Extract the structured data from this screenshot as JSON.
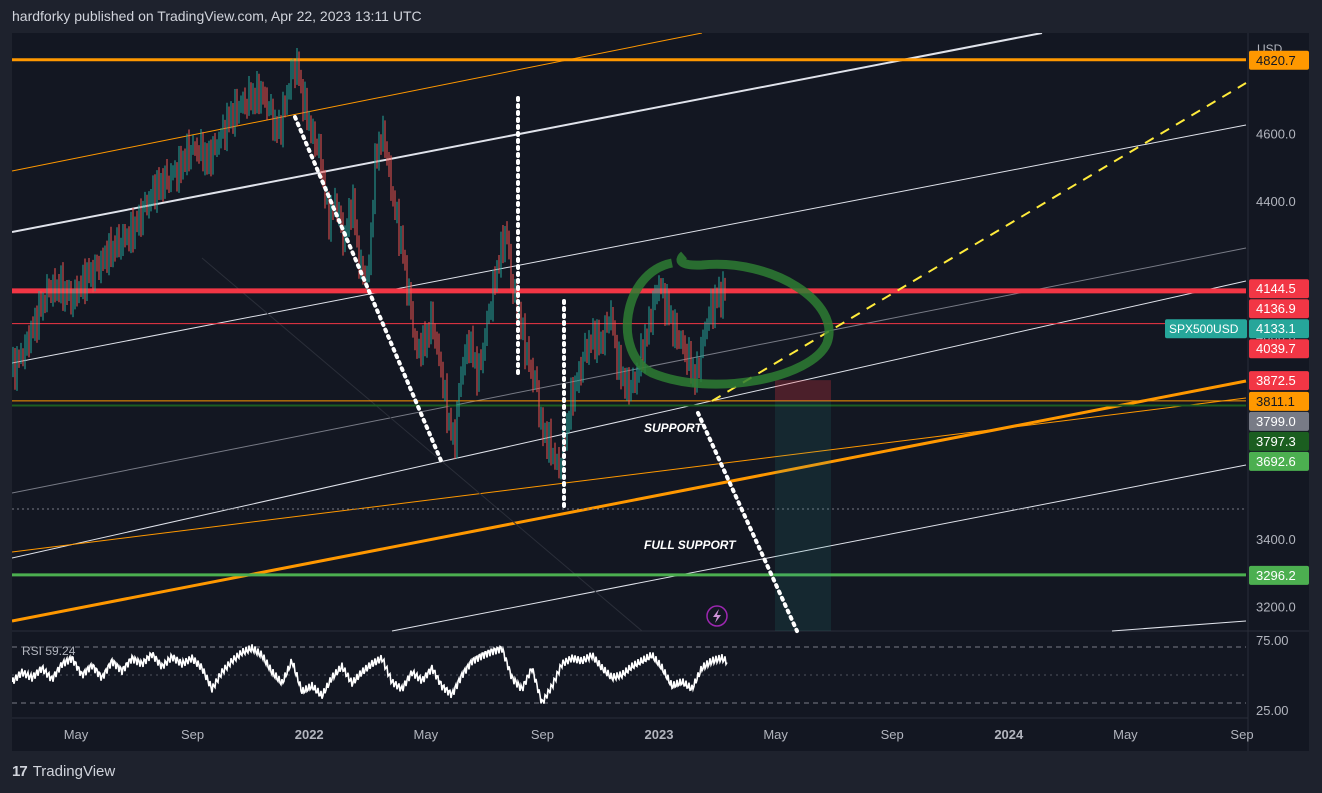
{
  "header": {
    "publisher": "hardforky published on TradingView.com, Apr 22, 2023 13:11 UTC"
  },
  "footer": {
    "logo_mark": "17",
    "brand": "TradingView"
  },
  "chart_data": {
    "type": "line",
    "symbol": "SPX500USD",
    "currency": "USD",
    "price_axis": {
      "ylim": [
        3130,
        4900
      ],
      "ticks": [
        3200.0,
        3400.0,
        4000.0,
        4400.0,
        4600.0
      ]
    },
    "time_axis": {
      "labels": [
        "May",
        "Sep",
        "2022",
        "May",
        "Sep",
        "2023",
        "May",
        "Sep",
        "2024",
        "May",
        "Sep"
      ]
    },
    "price_badges": [
      {
        "value": "4820.7",
        "color": "#ff9800",
        "text_color": "#131722"
      },
      {
        "value": "4144.5",
        "color": "#f23645",
        "text_color": "#ffffff"
      },
      {
        "value": "4136.9",
        "color": "#f23645",
        "text_color": "#ffffff"
      },
      {
        "value": "4133.1",
        "color": "#26a69a",
        "text_color": "#ffffff",
        "tag": "SPX500USD"
      },
      {
        "value": "4039.7",
        "color": "#f23645",
        "text_color": "#ffffff"
      },
      {
        "value": "3872.5",
        "color": "#f23645",
        "text_color": "#ffffff"
      },
      {
        "value": "3811.1",
        "color": "#ff9800",
        "text_color": "#131722"
      },
      {
        "value": "3799.0",
        "color": "#787b86",
        "text_color": "#ffffff"
      },
      {
        "value": "3797.3",
        "color": "#1b5e20",
        "text_color": "#ffffff"
      },
      {
        "value": "3692.6",
        "color": "#4caf50",
        "text_color": "#ffffff"
      },
      {
        "value": "3296.2",
        "color": "#4caf50",
        "text_color": "#ffffff"
      }
    ],
    "price_series": [
      [
        0,
        3900
      ],
      [
        12,
        3960
      ],
      [
        24,
        4050
      ],
      [
        36,
        4140
      ],
      [
        48,
        4150
      ],
      [
        60,
        4110
      ],
      [
        72,
        4170
      ],
      [
        84,
        4200
      ],
      [
        96,
        4250
      ],
      [
        108,
        4280
      ],
      [
        120,
        4310
      ],
      [
        132,
        4380
      ],
      [
        144,
        4440
      ],
      [
        156,
        4470
      ],
      [
        168,
        4500
      ],
      [
        176,
        4550
      ],
      [
        186,
        4560
      ],
      [
        196,
        4520
      ],
      [
        206,
        4580
      ],
      [
        218,
        4650
      ],
      [
        230,
        4690
      ],
      [
        240,
        4710
      ],
      [
        250,
        4720
      ],
      [
        258,
        4670
      ],
      [
        266,
        4600
      ],
      [
        274,
        4700
      ],
      [
        280,
        4790
      ],
      [
        285,
        4800
      ],
      [
        292,
        4690
      ],
      [
        300,
        4600
      ],
      [
        308,
        4540
      ],
      [
        316,
        4350
      ],
      [
        324,
        4400
      ],
      [
        332,
        4280
      ],
      [
        340,
        4410
      ],
      [
        348,
        4200
      ],
      [
        356,
        4170
      ],
      [
        364,
        4550
      ],
      [
        372,
        4600
      ],
      [
        380,
        4420
      ],
      [
        388,
        4300
      ],
      [
        396,
        4140
      ],
      [
        404,
        3960
      ],
      [
        412,
        3980
      ],
      [
        420,
        4050
      ],
      [
        428,
        3920
      ],
      [
        436,
        3760
      ],
      [
        442,
        3680
      ],
      [
        450,
        3920
      ],
      [
        458,
        3990
      ],
      [
        466,
        3880
      ],
      [
        474,
        4020
      ],
      [
        482,
        4160
      ],
      [
        490,
        4270
      ],
      [
        494,
        4320
      ],
      [
        500,
        4150
      ],
      [
        508,
        4050
      ],
      [
        516,
        3930
      ],
      [
        524,
        3860
      ],
      [
        530,
        3720
      ],
      [
        538,
        3680
      ],
      [
        546,
        3610
      ],
      [
        552,
        3680
      ],
      [
        558,
        3800
      ],
      [
        566,
        3880
      ],
      [
        574,
        3970
      ],
      [
        582,
        4000
      ],
      [
        590,
        3980
      ],
      [
        598,
        4080
      ],
      [
        606,
        3920
      ],
      [
        614,
        3850
      ],
      [
        622,
        3860
      ],
      [
        630,
        3950
      ],
      [
        638,
        4050
      ],
      [
        646,
        4160
      ],
      [
        654,
        4100
      ],
      [
        662,
        4020
      ],
      [
        670,
        3980
      ],
      [
        678,
        3920
      ],
      [
        684,
        3870
      ],
      [
        690,
        3980
      ],
      [
        698,
        4080
      ],
      [
        706,
        4120
      ],
      [
        714,
        4140
      ]
    ],
    "rsi": {
      "label": "RSI 59.24",
      "ylim": [
        20,
        80
      ],
      "upper_band": "75.00",
      "lower_band": "25.00",
      "values": [
        [
          0,
          45
        ],
        [
          10,
          52
        ],
        [
          20,
          48
        ],
        [
          30,
          55
        ],
        [
          40,
          47
        ],
        [
          50,
          58
        ],
        [
          60,
          62
        ],
        [
          70,
          50
        ],
        [
          80,
          57
        ],
        [
          90,
          48
        ],
        [
          100,
          60
        ],
        [
          110,
          53
        ],
        [
          120,
          62
        ],
        [
          130,
          58
        ],
        [
          140,
          65
        ],
        [
          150,
          56
        ],
        [
          160,
          63
        ],
        [
          170,
          58
        ],
        [
          180,
          62
        ],
        [
          190,
          55
        ],
        [
          200,
          40
        ],
        [
          210,
          52
        ],
        [
          220,
          60
        ],
        [
          230,
          66
        ],
        [
          240,
          69
        ],
        [
          250,
          64
        ],
        [
          260,
          52
        ],
        [
          270,
          44
        ],
        [
          280,
          60
        ],
        [
          290,
          38
        ],
        [
          300,
          42
        ],
        [
          310,
          35
        ],
        [
          320,
          48
        ],
        [
          330,
          56
        ],
        [
          340,
          44
        ],
        [
          350,
          52
        ],
        [
          360,
          58
        ],
        [
          370,
          62
        ],
        [
          380,
          45
        ],
        [
          390,
          40
        ],
        [
          400,
          52
        ],
        [
          410,
          46
        ],
        [
          420,
          55
        ],
        [
          430,
          42
        ],
        [
          440,
          36
        ],
        [
          450,
          50
        ],
        [
          460,
          60
        ],
        [
          470,
          64
        ],
        [
          480,
          67
        ],
        [
          490,
          69
        ],
        [
          500,
          48
        ],
        [
          510,
          40
        ],
        [
          520,
          55
        ],
        [
          530,
          30
        ],
        [
          540,
          42
        ],
        [
          550,
          58
        ],
        [
          560,
          62
        ],
        [
          570,
          60
        ],
        [
          580,
          64
        ],
        [
          590,
          55
        ],
        [
          600,
          48
        ],
        [
          610,
          50
        ],
        [
          620,
          56
        ],
        [
          630,
          60
        ],
        [
          640,
          64
        ],
        [
          650,
          55
        ],
        [
          660,
          42
        ],
        [
          670,
          45
        ],
        [
          680,
          40
        ],
        [
          690,
          55
        ],
        [
          700,
          60
        ],
        [
          710,
          62
        ],
        [
          716,
          59
        ]
      ]
    },
    "drawings": {
      "horizontal_lines": [
        {
          "price": 4820.7,
          "color": "#ff9800",
          "width": 3
        },
        {
          "price": 4136.9,
          "color": "#f23645",
          "width": 5
        },
        {
          "price": 4039.7,
          "color": "#f23645",
          "width": 1
        },
        {
          "price": 3811.1,
          "color": "#ff9800",
          "width": 1
        },
        {
          "price": 3797.3,
          "color": "#1b5e20",
          "width": 2
        },
        {
          "price": 3296.2,
          "color": "#4caf50",
          "width": 3
        }
      ],
      "annotations": [
        "SUPPORT",
        "FULL SUPPORT"
      ],
      "position_box": {
        "entry": 3811.1,
        "stop": 3872.5
      }
    }
  }
}
